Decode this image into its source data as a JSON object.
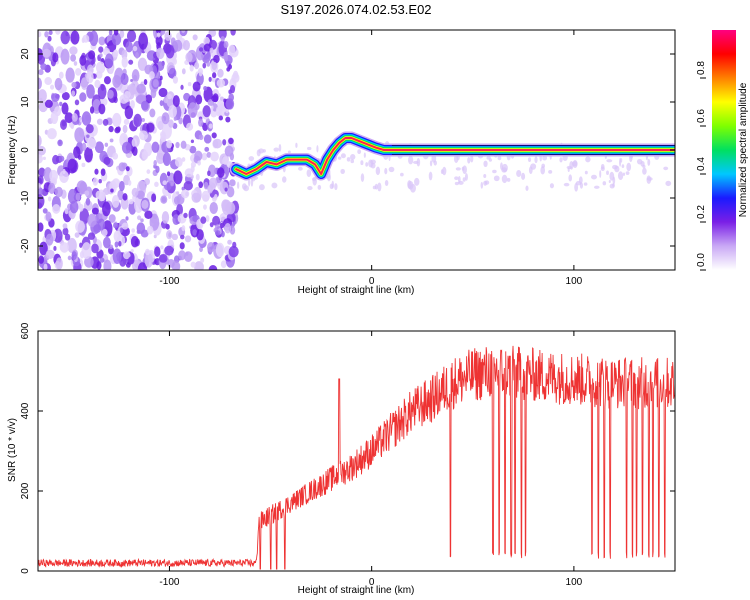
{
  "title": "S197.2026.074.02.53.E02",
  "chart_data": [
    {
      "type": "heatmap",
      "name": "spectrogram",
      "xlabel": "Height of straight line (km)",
      "ylabel": "Frequency (Hz)",
      "xlim": [
        -165,
        150
      ],
      "ylim": [
        -25,
        25
      ],
      "xticks": [
        -100,
        0,
        100
      ],
      "yticks": [
        -20,
        -10,
        0,
        10,
        20
      ],
      "noise_region_x": [
        -165,
        -67
      ],
      "colorbar": {
        "label": "Normalized spectral amplitude",
        "range": [
          0.0,
          1.0
        ],
        "ticks": [
          0.0,
          0.2,
          0.4,
          0.6,
          0.8
        ],
        "colors": [
          "#ffffff",
          "#c9a8f5",
          "#7a1fe6",
          "#1a1aff",
          "#00c8ff",
          "#00e060",
          "#7fff00",
          "#ffff00",
          "#ff8000",
          "#ff0000",
          "#ff0080"
        ]
      },
      "ridge": {
        "x": [
          -67,
          -62,
          -57,
          -52,
          -47,
          -42,
          -37,
          -32,
          -28,
          -25,
          -22,
          -19,
          -16,
          -13,
          -10,
          -7,
          -4,
          -1,
          2,
          6,
          10,
          20,
          40,
          60,
          80,
          100,
          120,
          150
        ],
        "y": [
          -4,
          -5,
          -4,
          -2.5,
          -3,
          -2,
          -2,
          -2,
          -3,
          -5,
          -2,
          0,
          1.5,
          2.5,
          2.5,
          2,
          1.5,
          1,
          0.5,
          0,
          0,
          0,
          0,
          0,
          0,
          0,
          0,
          0
        ]
      }
    },
    {
      "type": "line",
      "name": "snr",
      "xlabel": "Height of straight line (km)",
      "ylabel": "SNR (10 * v/v)",
      "xlim": [
        -165,
        150
      ],
      "ylim": [
        0,
        600
      ],
      "xticks": [
        -100,
        0,
        100
      ],
      "yticks": [
        0,
        200,
        400,
        600
      ],
      "color": "#ee3333",
      "trend": {
        "x": [
          -165,
          -57,
          -56,
          -40,
          -30,
          -20,
          -10,
          0,
          10,
          20,
          30,
          40,
          50,
          60,
          80,
          100,
          120,
          150
        ],
        "y": [
          20,
          20,
          120,
          170,
          200,
          230,
          260,
          300,
          350,
          400,
          430,
          470,
          490,
          500,
          490,
          480,
          470,
          470
        ]
      },
      "spikes_up": [
        {
          "x": -16,
          "y": 480
        }
      ],
      "dropouts_x": [
        -55,
        -50,
        -47,
        -43,
        39,
        60,
        63,
        66,
        69,
        71,
        74,
        76,
        109,
        112,
        115,
        118,
        126,
        129,
        131,
        134,
        137,
        139,
        142,
        145
      ]
    }
  ]
}
